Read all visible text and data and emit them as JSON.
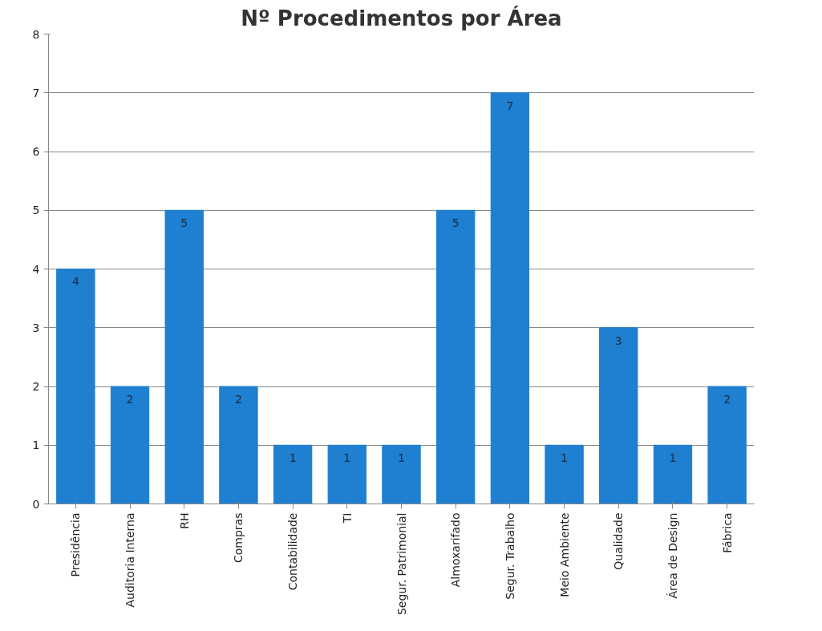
{
  "chart_data": {
    "type": "bar",
    "title": "Nº Procedimentos por Área",
    "categories": [
      "Presidência",
      "Auditoria Interna",
      "RH",
      "Compras",
      "Contabilidade",
      "TI",
      "Segur. Patrimonial",
      "Almoxarifado",
      "Segur. Trabalho",
      "Meio Ambiente",
      "Qualidade",
      "Área de Design",
      "Fábrica"
    ],
    "values": [
      4,
      2,
      5,
      2,
      1,
      1,
      1,
      5,
      7,
      1,
      3,
      1,
      2
    ],
    "color": "#1f7fd0",
    "ylim": [
      0,
      8
    ],
    "yticks": [
      0,
      1,
      2,
      3,
      4,
      5,
      6,
      7,
      8
    ],
    "grid": "y",
    "data_labels": true
  }
}
